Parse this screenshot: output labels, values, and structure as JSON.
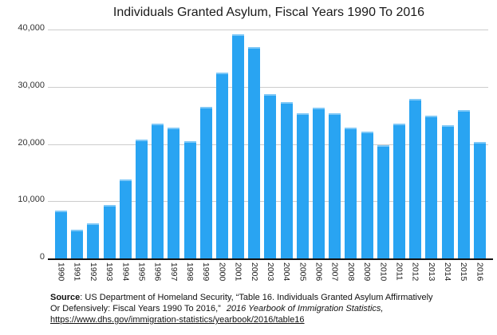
{
  "colors": {
    "bar": "#29a4f2",
    "bar_highlight": "rgba(255,255,255,0.4)",
    "gridline": "#cccccc",
    "axis": "#111111",
    "text": "#1a1a1a"
  },
  "chart_data": {
    "type": "bar",
    "title": "Individuals Granted Asylum, Fiscal Years 1990 To 2016",
    "categories": [
      "1990",
      "1991",
      "1992",
      "1993",
      "1994",
      "1995",
      "1996",
      "1997",
      "1998",
      "1999",
      "2000",
      "2001",
      "2002",
      "2003",
      "2004",
      "2005",
      "2006",
      "2007",
      "2008",
      "2009",
      "2010",
      "2011",
      "2012",
      "2013",
      "2014",
      "2015",
      "2016"
    ],
    "values": [
      8400,
      5000,
      6200,
      9400,
      13800,
      20700,
      23500,
      22900,
      20500,
      26500,
      32500,
      39100,
      36900,
      28700,
      27300,
      25300,
      26300,
      25300,
      22900,
      22200,
      19800,
      23500,
      27900,
      25000,
      23300,
      25900,
      20400
    ],
    "xlabel": "",
    "ylabel": "",
    "ylim": [
      0,
      40000
    ],
    "yticks": [
      0,
      10000,
      20000,
      30000,
      40000
    ],
    "y_tick_labels": [
      "0",
      "10,000",
      "20,000",
      "30,000",
      "40,000"
    ],
    "grid": true,
    "legend": false,
    "x_tick_rotation_deg": 90
  },
  "source": {
    "bold_label": "Source",
    "line1": ": US Department of Homeland Security, “Table 16. Individuals Granted Asylum Affirmatively",
    "line2": "Or Defensively: Fiscal Years 1990 To 2016,”",
    "line2_italic": "2016 Yearbook of Immigration Statistics,",
    "link": "https://www.dhs.gov/immigration-statistics/yearbook/2016/table16"
  }
}
